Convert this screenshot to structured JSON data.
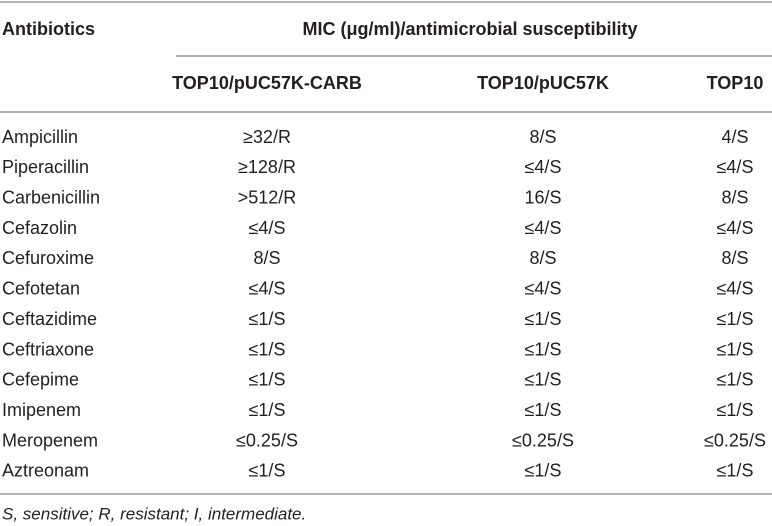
{
  "header": {
    "antibiotics": "Antibiotics",
    "group": "MIC (μg/ml)/antimicrobial susceptibility",
    "columns": [
      "TOP10/pUC57K-CARB",
      "TOP10/pUC57K",
      "TOP10"
    ]
  },
  "rows": [
    [
      "Ampicillin",
      "≥32/R",
      "8/S",
      "4/S"
    ],
    [
      "Piperacillin",
      "≥128/R",
      "≤4/S",
      "≤4/S"
    ],
    [
      "Carbenicillin",
      ">512/R",
      "16/S",
      "8/S"
    ],
    [
      "Cefazolin",
      "≤4/S",
      "≤4/S",
      "≤4/S"
    ],
    [
      "Cefuroxime",
      "8/S",
      "8/S",
      "8/S"
    ],
    [
      "Cefotetan",
      "≤4/S",
      "≤4/S",
      "≤4/S"
    ],
    [
      "Ceftazidime",
      "≤1/S",
      "≤1/S",
      "≤1/S"
    ],
    [
      "Ceftriaxone",
      "≤1/S",
      "≤1/S",
      "≤1/S"
    ],
    [
      "Cefepime",
      "≤1/S",
      "≤1/S",
      "≤1/S"
    ],
    [
      "Imipenem",
      "≤1/S",
      "≤1/S",
      "≤1/S"
    ],
    [
      "Meropenem",
      "≤0.25/S",
      "≤0.25/S",
      "≤0.25/S"
    ],
    [
      "Aztreonam",
      "≤1/S",
      "≤1/S",
      "≤1/S"
    ]
  ],
  "footnote": "S, sensitive; R, resistant; I, intermediate."
}
